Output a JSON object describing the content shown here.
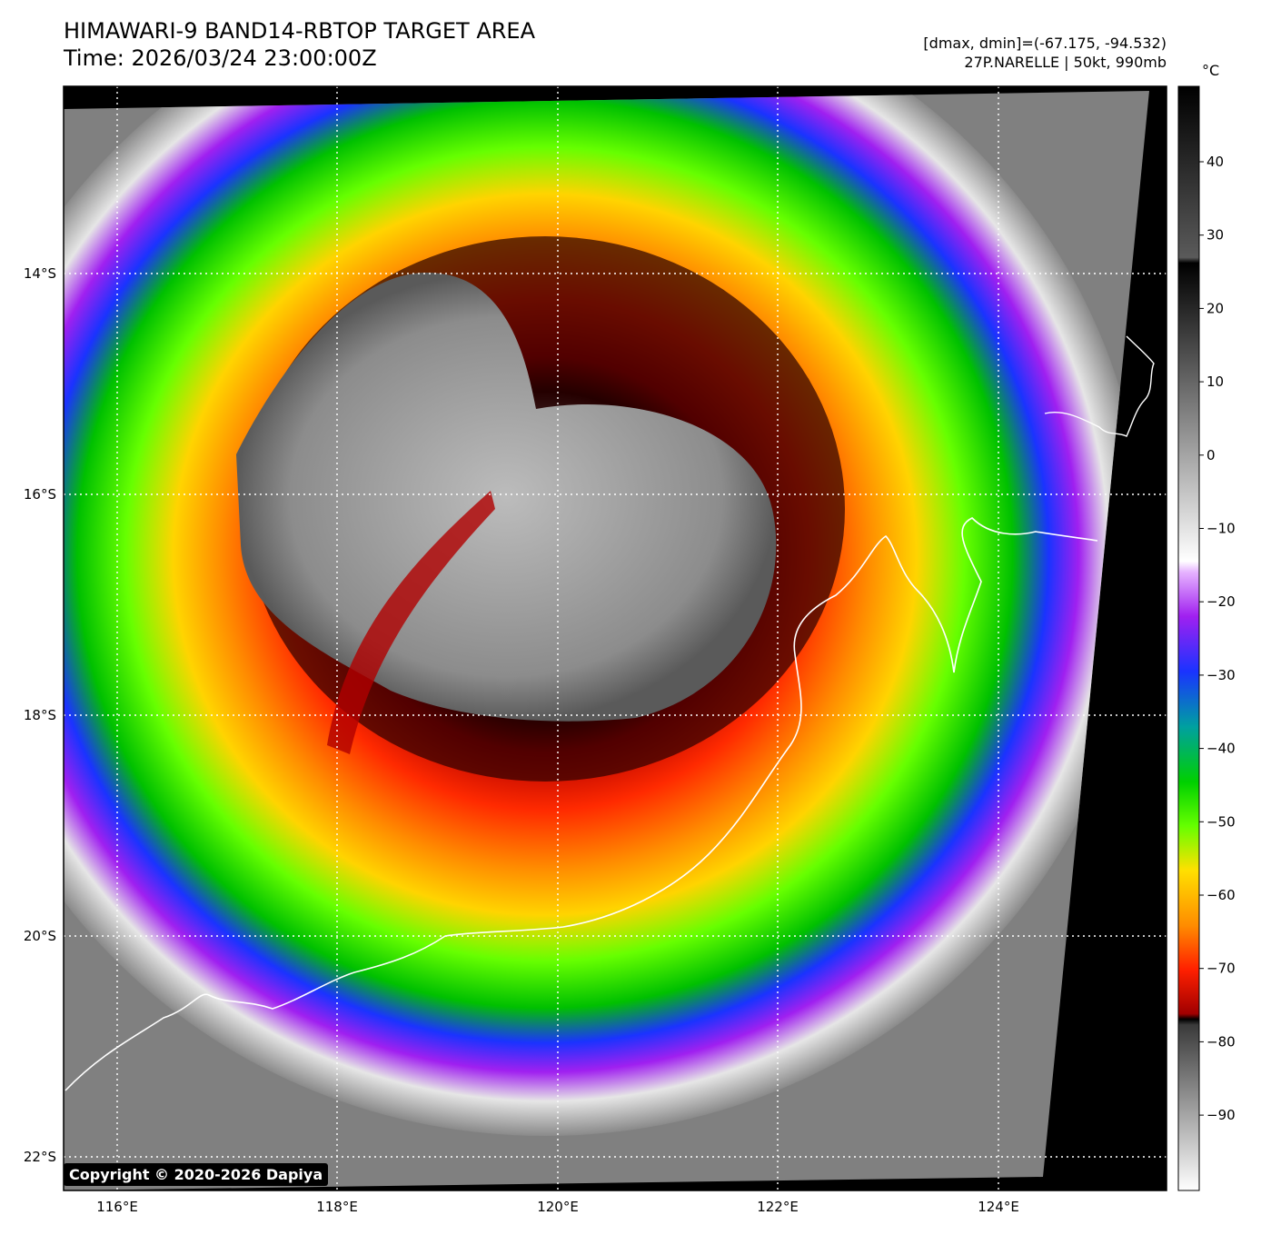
{
  "header": {
    "title_line1": "HIMAWARI-9 BAND14-RBTOP TARGET AREA",
    "title_line2": "Time: 2026/03/24 23:00:00Z",
    "info_line1": "[dmax, dmin]=(-67.175, -94.532)",
    "info_line2": "27P.NARELLE | 50kt, 990mb"
  },
  "map": {
    "lon_labels": [
      "116°E",
      "118°E",
      "120°E",
      "122°E",
      "124°E"
    ],
    "lat_labels": [
      "14°S",
      "16°S",
      "18°S",
      "20°S",
      "22°S"
    ],
    "lon_range": [
      115.5,
      125.5
    ],
    "lat_range": [
      -12.3,
      -22.3
    ],
    "gridlines": true
  },
  "colorbar": {
    "unit": "°C",
    "ticks": [
      "40",
      "30",
      "20",
      "10",
      "0",
      "−10",
      "−20",
      "−30",
      "−40",
      "−50",
      "−60",
      "−70",
      "−80",
      "−90"
    ],
    "range": [
      -100,
      50
    ]
  },
  "footer": {
    "copyright": "Copyright © 2020-2026 Dapiya"
  },
  "colors": {
    "coastline": "#ffffff",
    "background": "#000000"
  }
}
